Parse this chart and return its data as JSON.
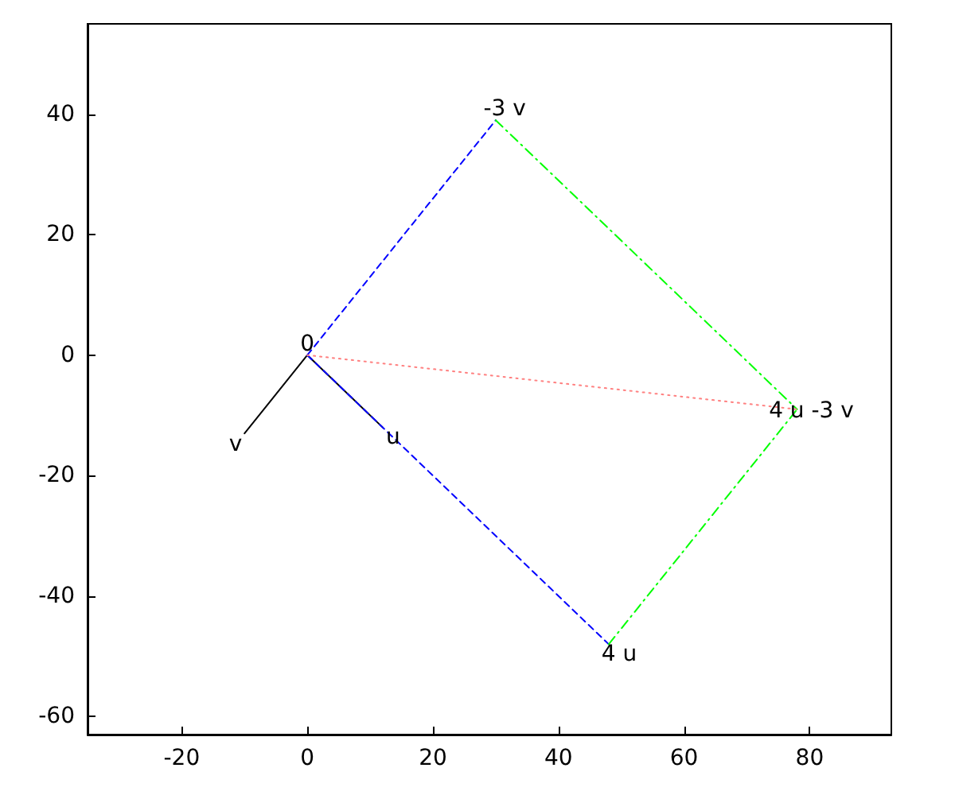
{
  "chart_data": {
    "type": "line",
    "xlim": [
      -35,
      93
    ],
    "ylim": [
      -63,
      55
    ],
    "xticks": [
      -20,
      0,
      20,
      40,
      60,
      80
    ],
    "yticks": [
      -60,
      -40,
      -20,
      0,
      20,
      40
    ],
    "grid": false,
    "marker": "none",
    "series": [
      {
        "color": "#000000",
        "x": [
          0,
          12
        ],
        "values": [
          0,
          -12
        ],
        "line_style": "solid"
      },
      {
        "color": "#000000",
        "x": [
          0,
          -10
        ],
        "values": [
          0,
          -13
        ],
        "line_style": "solid"
      },
      {
        "color": "#0000ff",
        "x": [
          0,
          30
        ],
        "values": [
          0,
          39
        ],
        "line_style": "dashed"
      },
      {
        "color": "#0000ff",
        "x": [
          0,
          48
        ],
        "values": [
          0,
          -48
        ],
        "line_style": "dashed"
      },
      {
        "color": "#00ff00",
        "x": [
          30,
          78
        ],
        "values": [
          39,
          -9
        ],
        "line_style": "dashdot"
      },
      {
        "color": "#00ff00",
        "x": [
          48,
          78
        ],
        "values": [
          -48,
          -9
        ],
        "line_style": "dashdot"
      },
      {
        "color": "#ff8080",
        "x": [
          0,
          78
        ],
        "values": [
          0,
          -9
        ],
        "line_style": "dotted"
      }
    ],
    "annotations": [
      {
        "text": "0",
        "x": 0,
        "y": 0
      },
      {
        "text": "u",
        "x": 12,
        "y": -12
      },
      {
        "text": "v",
        "x": -10,
        "y": -13
      },
      {
        "text": "-3 v",
        "x": 30,
        "y": 39
      },
      {
        "text": "4 u",
        "x": 48,
        "y": -48
      },
      {
        "text": "4 u -3 v",
        "x": 78,
        "y": -9
      }
    ]
  }
}
